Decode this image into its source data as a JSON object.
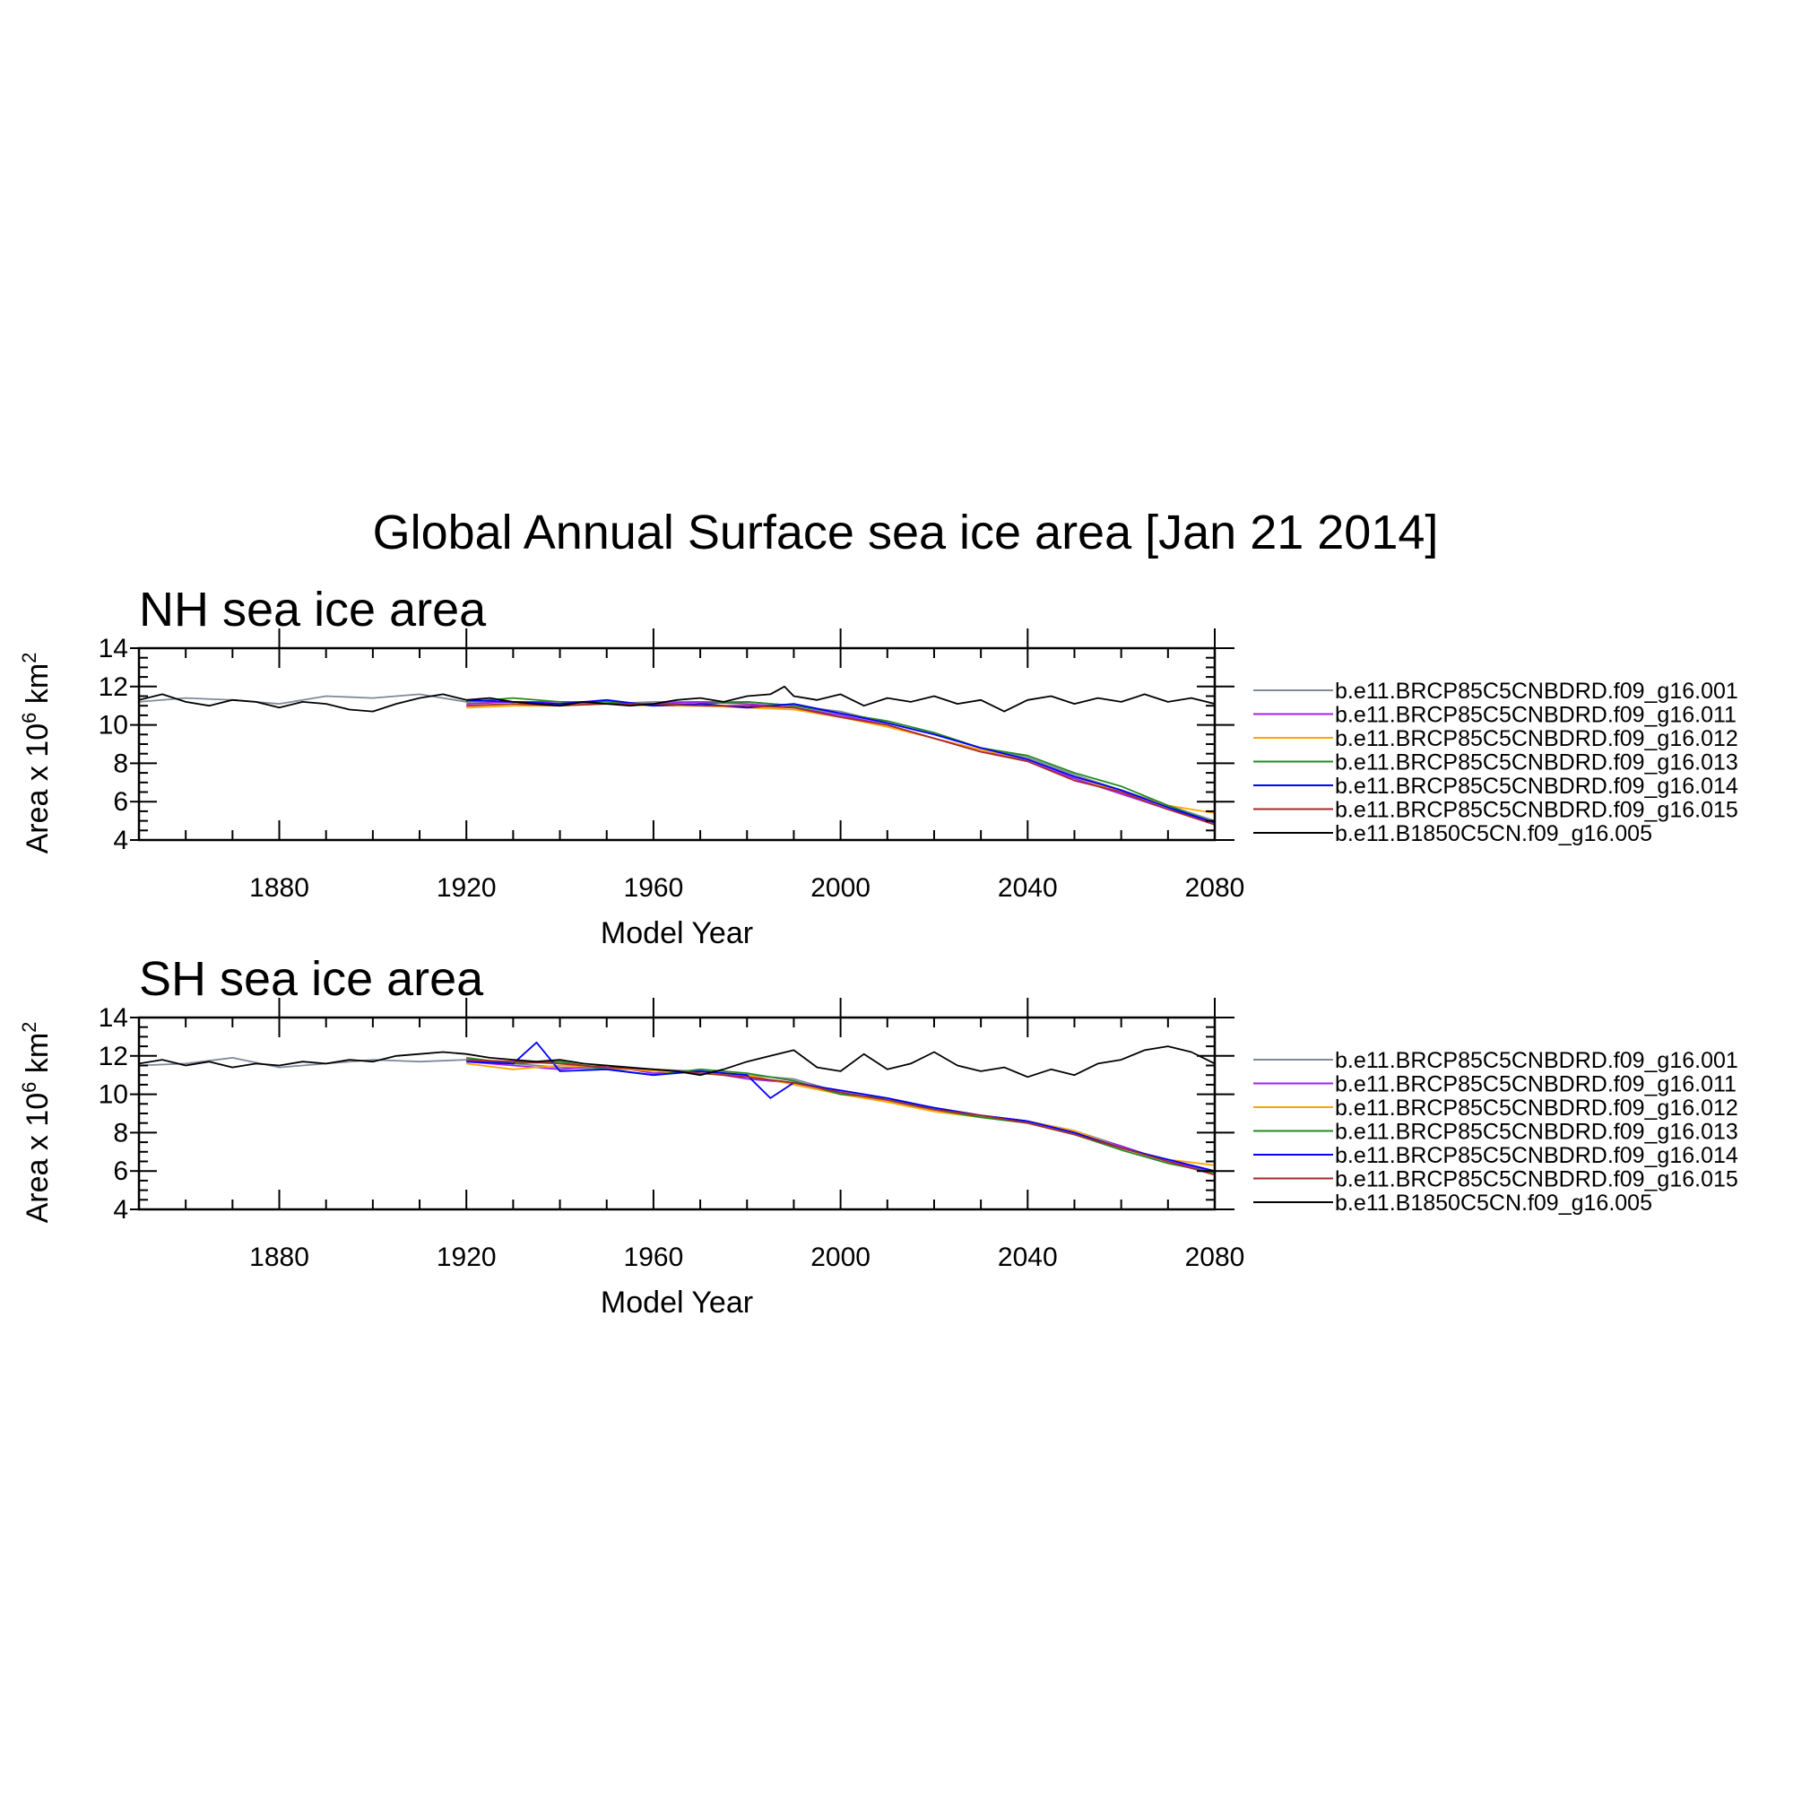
{
  "figure": {
    "title": "Global Annual Surface sea ice area [Jan 21 2014]"
  },
  "colors": {
    "b.e11.BRCP85C5CNBDRD.f09_g16.001": "#7f8a99",
    "b.e11.BRCP85C5CNBDRD.f09_g16.011": "#a020f0",
    "b.e11.BRCP85C5CNBDRD.f09_g16.012": "#ffa500",
    "b.e11.BRCP85C5CNBDRD.f09_g16.013": "#228b22",
    "b.e11.BRCP85C5CNBDRD.f09_g16.014": "#0000ff",
    "b.e11.BRCP85C5CNBDRD.f09_g16.015": "#a52a2a",
    "b.e11.B1850C5CN.f09_g16.005": "#000000"
  },
  "chart_data": [
    {
      "type": "line",
      "title": "NH sea ice area",
      "xlabel": "Model Year",
      "ylabel": "Area x 10^6 km^2",
      "ylabel_base": "Area x 10",
      "ylabel_exp": "6",
      "ylabel_unit": " km",
      "ylabel_unit_exp": "2",
      "xlim": [
        1850,
        2080
      ],
      "ylim": [
        4,
        14
      ],
      "xticks": [
        1880,
        1920,
        1960,
        2000,
        2040,
        2080
      ],
      "xtick_labels": [
        "1880",
        "1920",
        "1960",
        "2000",
        "2040",
        "2080"
      ],
      "yticks": [
        4,
        6,
        8,
        10,
        12,
        14
      ],
      "ytick_labels": [
        "4",
        "6",
        "8",
        "10",
        "12",
        "14"
      ],
      "legend_position": "right",
      "grid": false,
      "series": [
        {
          "name": "b.e11.BRCP85C5CNBDRD.f09_g16.001",
          "x": [
            1850,
            1860,
            1870,
            1880,
            1890,
            1900,
            1910,
            1920,
            1930,
            1940,
            1950,
            1960,
            1970,
            1980,
            1990,
            2000,
            2010,
            2020,
            2030,
            2040,
            2050,
            2060,
            2070,
            2080
          ],
          "y": [
            11.2,
            11.4,
            11.3,
            11.1,
            11.5,
            11.4,
            11.6,
            11.2,
            11.2,
            11.1,
            11.1,
            11.2,
            11.2,
            11.2,
            11.0,
            10.7,
            10.1,
            9.5,
            8.8,
            8.3,
            7.4,
            6.6,
            5.8,
            5.0
          ]
        },
        {
          "name": "b.e11.BRCP85C5CNBDRD.f09_g16.011",
          "x": [
            1920,
            1930,
            1940,
            1950,
            1960,
            1970,
            1980,
            1990,
            2000,
            2010,
            2020,
            2030,
            2040,
            2050,
            2060,
            2070,
            2080
          ],
          "y": [
            11.1,
            11.2,
            11.2,
            11.1,
            11.1,
            11.2,
            11.1,
            10.9,
            10.5,
            10.0,
            9.3,
            8.7,
            8.1,
            7.2,
            6.4,
            5.6,
            4.9
          ]
        },
        {
          "name": "b.e11.BRCP85C5CNBDRD.f09_g16.012",
          "x": [
            1920,
            1930,
            1940,
            1950,
            1960,
            1970,
            1980,
            1990,
            2000,
            2010,
            2020,
            2030,
            2040,
            2050,
            2060,
            2070,
            2080
          ],
          "y": [
            10.9,
            11.0,
            11.0,
            11.1,
            11.0,
            11.0,
            10.9,
            10.8,
            10.4,
            9.9,
            9.3,
            8.7,
            8.2,
            7.3,
            6.5,
            5.8,
            5.4
          ]
        },
        {
          "name": "b.e11.BRCP85C5CNBDRD.f09_g16.013",
          "x": [
            1920,
            1930,
            1940,
            1950,
            1960,
            1970,
            1980,
            1990,
            2000,
            2010,
            2020,
            2030,
            2040,
            2050,
            2060,
            2070,
            2080
          ],
          "y": [
            11.2,
            11.4,
            11.2,
            11.2,
            11.0,
            11.1,
            11.2,
            11.0,
            10.6,
            10.2,
            9.6,
            8.8,
            8.4,
            7.5,
            6.8,
            5.8,
            4.9
          ]
        },
        {
          "name": "b.e11.BRCP85C5CNBDRD.f09_g16.014",
          "x": [
            1920,
            1930,
            1940,
            1950,
            1960,
            1970,
            1980,
            1990,
            2000,
            2010,
            2020,
            2030,
            2040,
            2050,
            2060,
            2070,
            2080
          ],
          "y": [
            11.3,
            11.2,
            11.1,
            11.3,
            11.0,
            11.1,
            10.9,
            11.1,
            10.6,
            10.1,
            9.5,
            8.8,
            8.2,
            7.3,
            6.6,
            5.7,
            4.9
          ]
        },
        {
          "name": "b.e11.BRCP85C5CNBDRD.f09_g16.015",
          "x": [
            1920,
            1930,
            1940,
            1950,
            1960,
            1970,
            1980,
            1990,
            2000,
            2010,
            2020,
            2030,
            2040,
            2050,
            2060,
            2070,
            2080
          ],
          "y": [
            11.0,
            11.1,
            11.0,
            11.1,
            11.1,
            11.0,
            11.0,
            10.9,
            10.4,
            10.0,
            9.3,
            8.6,
            8.1,
            7.1,
            6.5,
            5.6,
            4.8
          ]
        },
        {
          "name": "b.e11.B1850C5CN.f09_g16.005",
          "x": [
            1850,
            1855,
            1860,
            1865,
            1870,
            1875,
            1880,
            1885,
            1890,
            1895,
            1900,
            1905,
            1910,
            1915,
            1920,
            1925,
            1930,
            1935,
            1940,
            1945,
            1950,
            1955,
            1960,
            1965,
            1970,
            1975,
            1980,
            1985,
            1988,
            1990,
            1995,
            2000,
            2005,
            2010,
            2015,
            2020,
            2025,
            2030,
            2035,
            2040,
            2045,
            2050,
            2055,
            2060,
            2065,
            2070,
            2075,
            2080
          ],
          "y": [
            11.3,
            11.6,
            11.2,
            11.0,
            11.3,
            11.2,
            10.9,
            11.2,
            11.1,
            10.8,
            10.7,
            11.1,
            11.4,
            11.6,
            11.3,
            11.4,
            11.2,
            11.1,
            11.0,
            11.2,
            11.1,
            11.0,
            11.1,
            11.3,
            11.4,
            11.2,
            11.5,
            11.6,
            12.0,
            11.5,
            11.3,
            11.6,
            11.0,
            11.4,
            11.2,
            11.5,
            11.1,
            11.3,
            10.7,
            11.3,
            11.5,
            11.1,
            11.4,
            11.2,
            11.6,
            11.2,
            11.4,
            11.1
          ]
        }
      ]
    },
    {
      "type": "line",
      "title": "SH sea ice area",
      "xlabel": "Model Year",
      "ylabel": "Area x 10^6 km^2",
      "ylabel_base": "Area x 10",
      "ylabel_exp": "6",
      "ylabel_unit": " km",
      "ylabel_unit_exp": "2",
      "xlim": [
        1850,
        2080
      ],
      "ylim": [
        4,
        14
      ],
      "xticks": [
        1880,
        1920,
        1960,
        2000,
        2040,
        2080
      ],
      "xtick_labels": [
        "1880",
        "1920",
        "1960",
        "2000",
        "2040",
        "2080"
      ],
      "yticks": [
        4,
        6,
        8,
        10,
        12,
        14
      ],
      "ytick_labels": [
        "4",
        "6",
        "8",
        "10",
        "12",
        "14"
      ],
      "legend_position": "right",
      "grid": false,
      "series": [
        {
          "name": "b.e11.BRCP85C5CNBDRD.f09_g16.001",
          "x": [
            1850,
            1860,
            1870,
            1880,
            1890,
            1900,
            1910,
            1920,
            1930,
            1940,
            1950,
            1960,
            1970,
            1980,
            1990,
            2000,
            2010,
            2020,
            2030,
            2040,
            2050,
            2060,
            2070,
            2080
          ],
          "y": [
            11.5,
            11.6,
            11.9,
            11.4,
            11.6,
            11.8,
            11.7,
            11.8,
            11.6,
            11.4,
            11.3,
            11.3,
            11.2,
            11.0,
            10.8,
            10.1,
            9.6,
            9.2,
            8.9,
            8.6,
            8.1,
            7.3,
            6.5,
            5.9
          ]
        },
        {
          "name": "b.e11.BRCP85C5CNBDRD.f09_g16.011",
          "x": [
            1920,
            1930,
            1940,
            1950,
            1960,
            1970,
            1980,
            1990,
            2000,
            2010,
            2020,
            2030,
            2040,
            2050,
            2060,
            2070,
            2080
          ],
          "y": [
            11.7,
            11.5,
            11.3,
            11.5,
            11.1,
            11.2,
            10.8,
            10.6,
            10.1,
            9.7,
            9.3,
            8.9,
            8.6,
            8.0,
            7.3,
            6.5,
            6.0
          ]
        },
        {
          "name": "b.e11.BRCP85C5CNBDRD.f09_g16.012",
          "x": [
            1920,
            1930,
            1940,
            1950,
            1960,
            1970,
            1980,
            1990,
            2000,
            2010,
            2020,
            2030,
            2040,
            2050,
            2060,
            2070,
            2080
          ],
          "y": [
            11.6,
            11.3,
            11.5,
            11.4,
            11.2,
            11.1,
            11.0,
            10.5,
            10.0,
            9.6,
            9.1,
            8.8,
            8.6,
            8.1,
            7.2,
            6.6,
            6.3
          ]
        },
        {
          "name": "b.e11.BRCP85C5CNBDRD.f09_g16.013",
          "x": [
            1920,
            1930,
            1940,
            1950,
            1960,
            1970,
            1980,
            1990,
            2000,
            2010,
            2020,
            2030,
            2040,
            2050,
            2060,
            2070,
            2080
          ],
          "y": [
            11.9,
            11.6,
            11.7,
            11.3,
            11.0,
            11.3,
            11.1,
            10.7,
            10.0,
            9.8,
            9.2,
            8.8,
            8.5,
            7.9,
            7.1,
            6.4,
            5.9
          ]
        },
        {
          "name": "b.e11.BRCP85C5CNBDRD.f09_g16.014",
          "x": [
            1920,
            1930,
            1935,
            1940,
            1950,
            1960,
            1970,
            1980,
            1985,
            1990,
            2000,
            2010,
            2020,
            2030,
            2040,
            2050,
            2060,
            2070,
            2080
          ],
          "y": [
            11.7,
            11.6,
            12.7,
            11.2,
            11.3,
            11.0,
            11.2,
            11.0,
            9.8,
            10.6,
            10.2,
            9.8,
            9.3,
            8.9,
            8.6,
            8.0,
            7.2,
            6.6,
            6.0
          ]
        },
        {
          "name": "b.e11.BRCP85C5CNBDRD.f09_g16.015",
          "x": [
            1920,
            1930,
            1940,
            1950,
            1960,
            1970,
            1980,
            1990,
            2000,
            2010,
            2020,
            2030,
            2040,
            2050,
            2060,
            2070,
            2080
          ],
          "y": [
            11.8,
            11.7,
            11.6,
            11.4,
            11.3,
            11.1,
            10.9,
            10.6,
            10.1,
            9.7,
            9.2,
            8.9,
            8.5,
            7.9,
            7.2,
            6.5,
            5.8
          ]
        },
        {
          "name": "b.e11.B1850C5CN.f09_g16.005",
          "x": [
            1850,
            1855,
            1860,
            1865,
            1870,
            1875,
            1880,
            1885,
            1890,
            1895,
            1900,
            1905,
            1910,
            1915,
            1920,
            1925,
            1930,
            1935,
            1940,
            1945,
            1950,
            1955,
            1960,
            1965,
            1970,
            1975,
            1980,
            1985,
            1990,
            1995,
            2000,
            2005,
            2010,
            2015,
            2020,
            2025,
            2030,
            2035,
            2040,
            2045,
            2050,
            2055,
            2060,
            2065,
            2070,
            2075,
            2080
          ],
          "y": [
            11.6,
            11.8,
            11.5,
            11.7,
            11.4,
            11.6,
            11.5,
            11.7,
            11.6,
            11.8,
            11.7,
            12.0,
            12.1,
            12.2,
            12.1,
            11.9,
            11.8,
            11.7,
            11.8,
            11.6,
            11.5,
            11.4,
            11.3,
            11.2,
            11.0,
            11.3,
            11.7,
            12.0,
            12.3,
            11.4,
            11.2,
            12.1,
            11.3,
            11.6,
            12.2,
            11.5,
            11.2,
            11.4,
            10.9,
            11.3,
            11.0,
            11.6,
            11.8,
            12.3,
            12.5,
            12.2,
            11.6
          ]
        }
      ]
    }
  ]
}
